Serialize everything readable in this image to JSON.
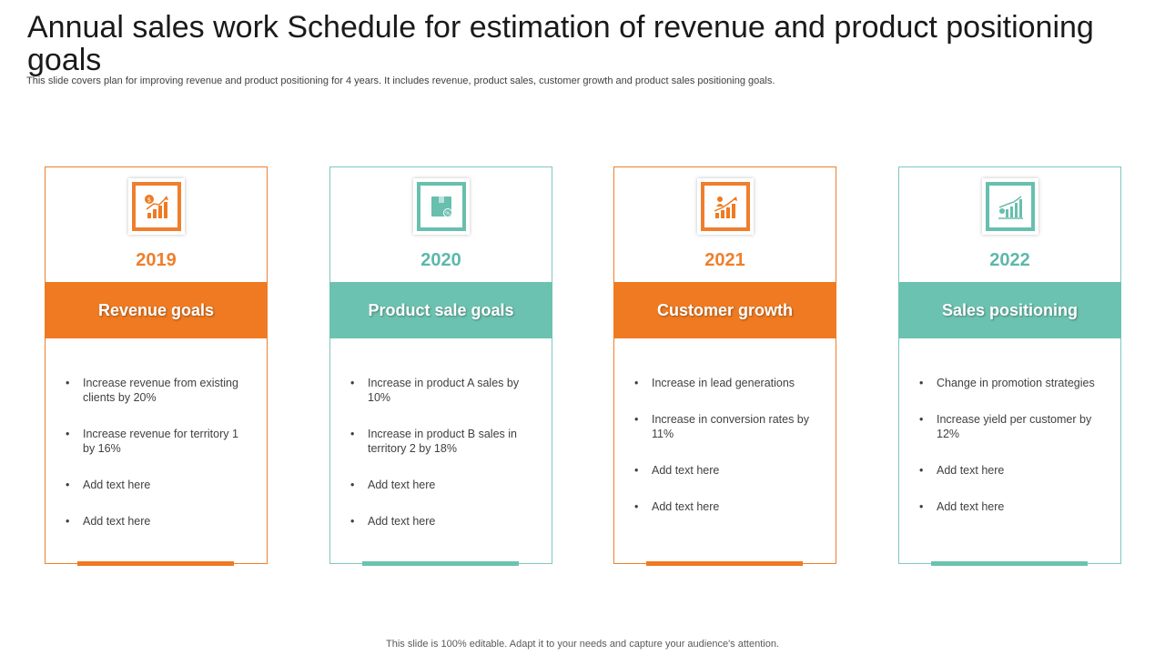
{
  "slide": {
    "title": "Annual sales work Schedule for estimation of revenue and product positioning goals",
    "subtitle": "This slide covers plan for improving revenue and product positioning for 4 years. It includes revenue, product sales, customer growth and product sales positioning goals.",
    "footer": "This slide is 100% editable. Adapt it to your needs and capture your audience's attention."
  },
  "colors": {
    "orange": "#ef7a21",
    "teal": "#6cc2b0",
    "title_text": "#1a1a1a",
    "body_text": "#404040"
  },
  "cards": [
    {
      "year": "2019",
      "heading": "Revenue goals",
      "icon": "revenue-growth-icon",
      "items": [
        "Increase revenue  from existing clients by 20%",
        "Increase revenue  for territory 1 by 16%",
        "Add text here",
        "Add text here"
      ]
    },
    {
      "year": "2020",
      "heading": "Product sale goals",
      "icon": "product-box-icon",
      "items": [
        "Increase in product A sales by 10%",
        "Increase in product B sales in territory 2 by 18%",
        " Add text here",
        "Add text here"
      ]
    },
    {
      "year": "2021",
      "heading": "Customer growth",
      "icon": "customer-growth-icon",
      "items": [
        "Increase in lead generations",
        "Increase in conversion  rates by 11%",
        "Add text here",
        "Add text here"
      ]
    },
    {
      "year": "2022",
      "heading": "Sales positioning",
      "icon": "sales-chart-icon",
      "items": [
        "Change  in promotion strategies",
        "Increase yield per customer by 12%",
        "Add text here",
        "Add text here"
      ]
    }
  ]
}
